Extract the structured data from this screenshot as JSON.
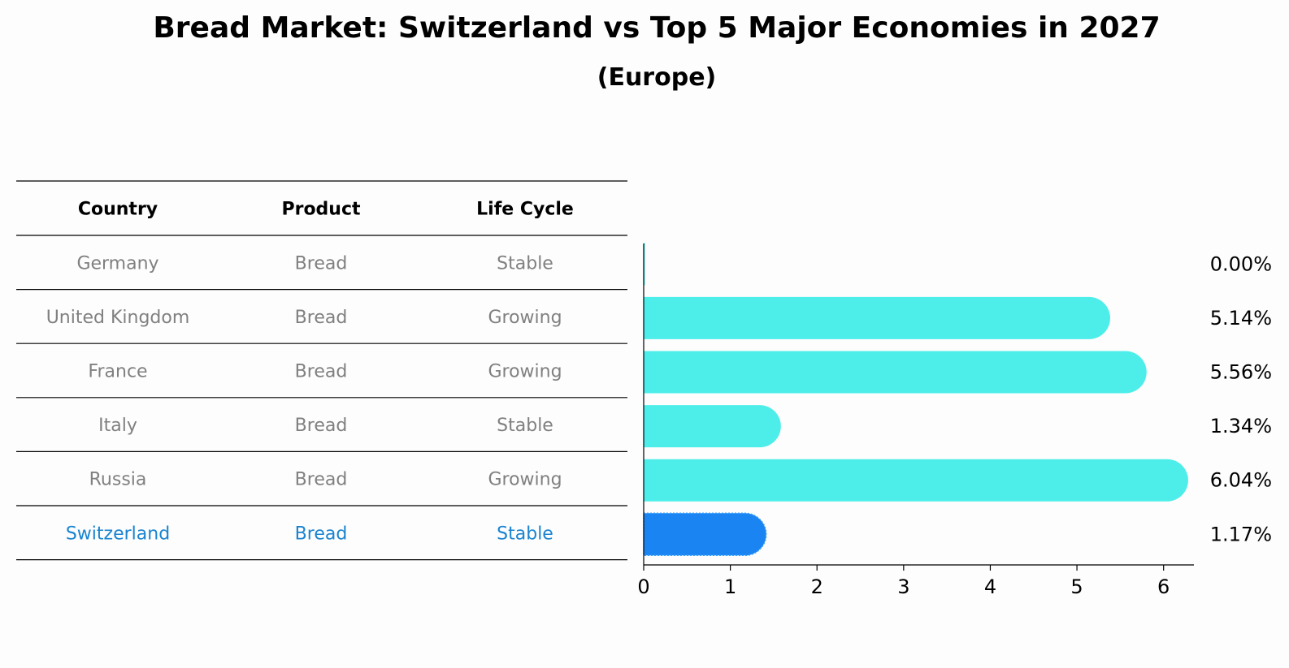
{
  "title": "Bread Market: Switzerland vs Top 5 Major Economies in 2027",
  "subtitle": "(Europe)",
  "colors": {
    "bar_default": "#4deeea",
    "bar_highlight": "#1a84f2",
    "text_muted": "#808080",
    "text_highlight": "#1a84d0"
  },
  "table": {
    "headers": [
      "Country",
      "Product",
      "Life Cycle"
    ],
    "rows": [
      {
        "country": "Germany",
        "product": "Bread",
        "life_cycle": "Stable",
        "highlight": false
      },
      {
        "country": "United Kingdom",
        "product": "Bread",
        "life_cycle": "Growing",
        "highlight": false
      },
      {
        "country": "France",
        "product": "Bread",
        "life_cycle": "Growing",
        "highlight": false
      },
      {
        "country": "Italy",
        "product": "Bread",
        "life_cycle": "Stable",
        "highlight": false
      },
      {
        "country": "Russia",
        "product": "Bread",
        "life_cycle": "Growing",
        "highlight": false
      },
      {
        "country": "Switzerland",
        "product": "Bread",
        "life_cycle": "Stable",
        "highlight": true
      }
    ]
  },
  "chart_data": {
    "type": "bar",
    "orientation": "horizontal",
    "categories": [
      "Germany",
      "United Kingdom",
      "France",
      "Italy",
      "Russia",
      "Switzerland"
    ],
    "values": [
      0.0,
      5.14,
      5.56,
      1.34,
      6.04,
      1.17
    ],
    "value_labels": [
      "0.00%",
      "5.14%",
      "5.56%",
      "1.34%",
      "6.04%",
      "1.17%"
    ],
    "highlight_index": 5,
    "xlim": [
      0,
      6.35
    ],
    "xticks": [
      0,
      1,
      2,
      3,
      4,
      5,
      6
    ],
    "grid": false
  }
}
